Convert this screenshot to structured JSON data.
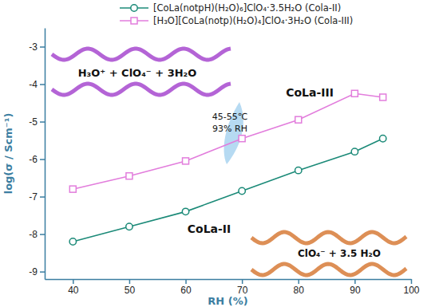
{
  "chart_data": {
    "type": "line",
    "xlabel": "RH (%)",
    "ylabel": "log(σ / Scm⁻¹)",
    "x": [
      40,
      50,
      60,
      70,
      80,
      90,
      95
    ],
    "series": [
      {
        "name": "[CoLa(notpH)(H₂O)₆]ClO₄·3.5H₂O (Cola-II)",
        "color": "#1b8a78",
        "marker": "circle",
        "values": [
          -8.2,
          -7.8,
          -7.4,
          -6.85,
          -6.3,
          -5.8,
          -5.45
        ]
      },
      {
        "name": "[H₃O][CoLa(notp)(H₂O)₄]ClO₄·3H₂O (Cola-III)",
        "color": "#e27ddc",
        "marker": "square",
        "values": [
          -6.8,
          -6.45,
          -6.05,
          -5.45,
          -4.95,
          -4.25,
          -4.35
        ]
      }
    ],
    "xlim": [
      35,
      100
    ],
    "xticks": [
      40,
      50,
      60,
      70,
      80,
      90,
      100
    ],
    "ylim": [
      -9.2,
      -2.5
    ],
    "yticks": [
      -9,
      -8,
      -7,
      -6,
      -5,
      -4,
      -3
    ],
    "legend": "top",
    "grid": false,
    "annotations": [
      "CoLa-III",
      "CoLa-II",
      "45-55℃",
      "93% RH",
      "H₃O⁺ + ClO₄⁻ + 3H₂O",
      "ClO₄⁻ + 3.5 H₂O"
    ]
  }
}
